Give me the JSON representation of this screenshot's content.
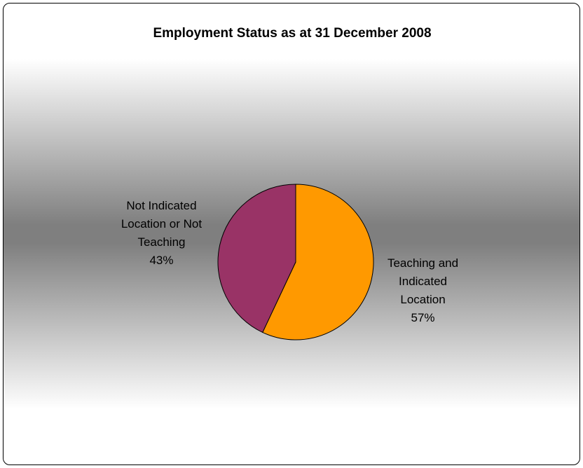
{
  "chart_data": {
    "type": "pie",
    "title": "Employment Status as at 31 December 2008",
    "categories": [
      "Teaching and Indicated Location",
      "Not Indicated Location or Not Teaching"
    ],
    "values": [
      57,
      43
    ],
    "value_labels": [
      "57%",
      "43%"
    ],
    "colors": [
      "#ff9900",
      "#993366"
    ]
  }
}
